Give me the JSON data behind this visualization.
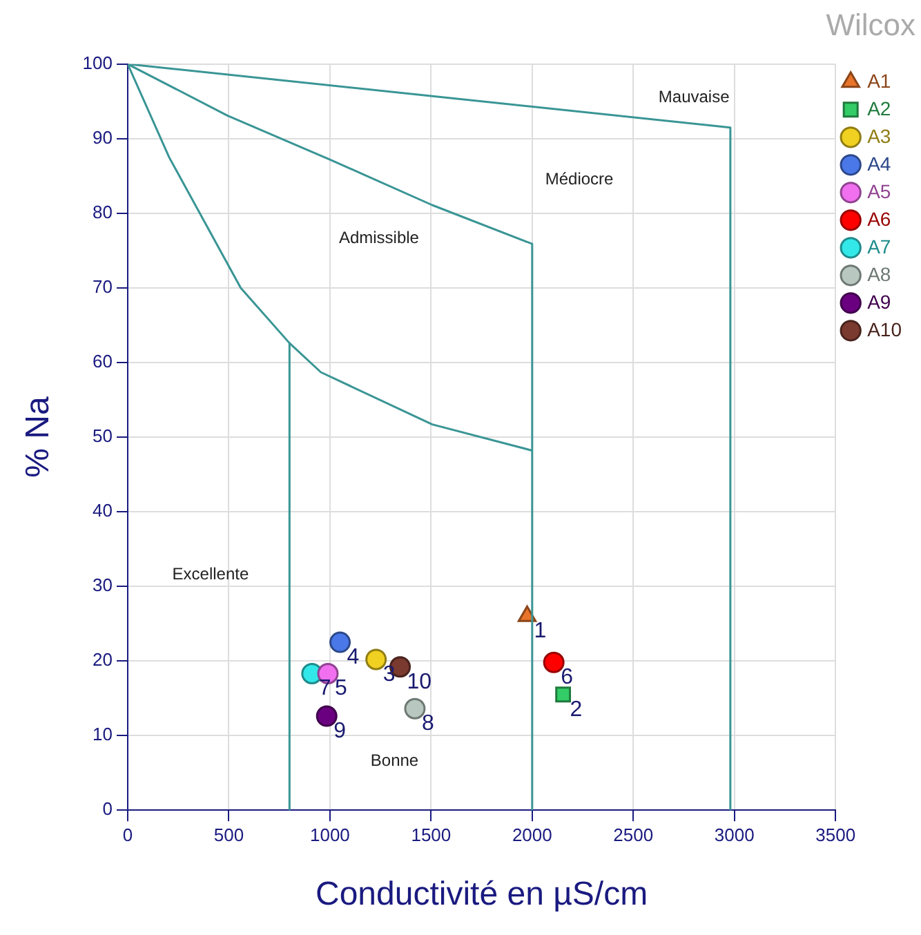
{
  "chart_data": {
    "type": "scatter",
    "title": "Wilcox",
    "xlabel": "Conductivité en µS/cm",
    "ylabel": "% Na",
    "xlim": [
      0,
      3500
    ],
    "xticks": [
      0,
      500,
      1000,
      1500,
      2000,
      2500,
      3000,
      3500
    ],
    "ylim": [
      0,
      100
    ],
    "yticks": [
      0,
      10,
      20,
      30,
      40,
      50,
      60,
      70,
      80,
      90,
      100
    ],
    "grid": true,
    "legend": "top right",
    "series": [
      {
        "type": "line",
        "color": "#3a9595",
        "marker": "none",
        "x": [
          0,
          2980,
          2980
        ],
        "values": [
          100,
          91.5,
          0
        ]
      },
      {
        "type": "line",
        "color": "#3a9595",
        "marker": "none",
        "x": [
          0,
          493,
          1000,
          1506,
          2000,
          2000
        ],
        "values": [
          100,
          93.1,
          87.2,
          81.1,
          75.9,
          0
        ]
      },
      {
        "type": "line",
        "color": "#3a9595",
        "marker": "none",
        "x": [
          0,
          205,
          559,
          800,
          955,
          1506,
          2000
        ],
        "values": [
          100,
          87.5,
          70,
          62.6,
          58.7,
          51.7,
          48.2
        ]
      },
      {
        "type": "line",
        "color": "#3a9595",
        "marker": "none",
        "x": [
          800,
          800
        ],
        "values": [
          62.6,
          0
        ]
      },
      {
        "name": "A1",
        "type": "scatter",
        "color": "#e8732a",
        "marker": "triangle",
        "x": [
          1975
        ],
        "values": [
          26
        ]
      },
      {
        "name": "A2",
        "type": "scatter",
        "color": "#33cc66",
        "marker": "square",
        "x": [
          2153
        ],
        "values": [
          15.5
        ]
      },
      {
        "name": "A3",
        "type": "scatter",
        "color": "#f0d020",
        "marker": "circle",
        "x": [
          1228
        ],
        "values": [
          20.2
        ]
      },
      {
        "name": "A4",
        "type": "scatter",
        "color": "#4a78e8",
        "marker": "circle",
        "x": [
          1050
        ],
        "values": [
          22.5
        ]
      },
      {
        "name": "A5",
        "type": "scatter",
        "color": "#f070f0",
        "marker": "circle",
        "x": [
          990
        ],
        "values": [
          18.3
        ]
      },
      {
        "name": "A6",
        "type": "scatter",
        "color": "#ff0000",
        "marker": "circle",
        "x": [
          2107
        ],
        "values": [
          19.8
        ]
      },
      {
        "name": "A7",
        "type": "scatter",
        "color": "#33e8e8",
        "marker": "circle",
        "x": [
          911
        ],
        "values": [
          18.3
        ]
      },
      {
        "name": "A8",
        "type": "scatter",
        "color": "#b8c8c0",
        "marker": "circle",
        "x": [
          1420
        ],
        "values": [
          13.6
        ]
      },
      {
        "name": "A9",
        "type": "scatter",
        "color": "#6a0080",
        "marker": "circle",
        "x": [
          984
        ],
        "values": [
          12.6
        ]
      },
      {
        "name": "A10",
        "type": "scatter",
        "color": "#7a3a30",
        "marker": "circle",
        "x": [
          1347
        ],
        "values": [
          19.2
        ]
      }
    ],
    "annotations": [
      "Mauvaise",
      "Médiocre",
      "Admissible",
      "Excellente",
      "Bonne",
      {
        "text": "1",
        "x": 1975,
        "y": 26
      },
      {
        "text": "2",
        "x": 2153,
        "y": 15.5
      },
      {
        "text": "3",
        "x": 1228,
        "y": 20.2
      },
      {
        "text": "4",
        "x": 1050,
        "y": 22.5
      },
      {
        "text": "5",
        "x": 990,
        "y": 18.3
      },
      {
        "text": "6",
        "x": 2107,
        "y": 19.8
      },
      {
        "text": "7",
        "x": 911,
        "y": 18.3
      },
      {
        "text": "8",
        "x": 1420,
        "y": 13.6
      },
      {
        "text": "9",
        "x": 984,
        "y": 12.6
      },
      {
        "text": "10",
        "x": 1347,
        "y": 19.2
      }
    ]
  }
}
